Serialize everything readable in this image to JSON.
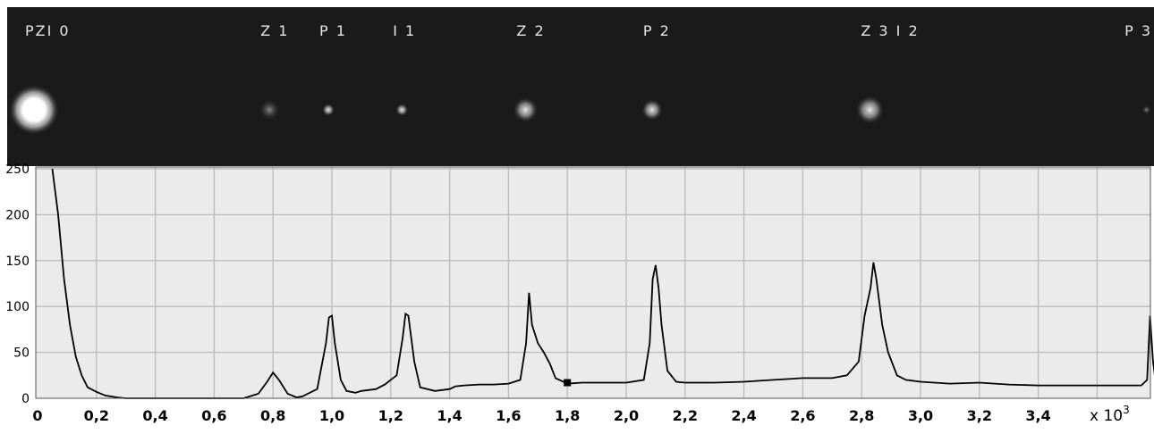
{
  "image_strip": {
    "labels": [
      "PZI 0",
      "Z 1",
      "P 1",
      "I 1",
      "Z 2",
      "P 2",
      "Z 3 I 2",
      "P 3"
    ],
    "label_x": [
      0.0,
      0.8,
      1.0,
      1.25,
      1.67,
      2.1,
      2.84,
      3.78
    ]
  },
  "chart_data": {
    "type": "line",
    "title": "",
    "xlabel": "",
    "ylabel": "",
    "x_multiplier_label": "x 10",
    "x_multiplier_exponent": "3",
    "xlim": [
      0,
      3.81
    ],
    "ylim": [
      0,
      250
    ],
    "x_ticks": [
      0,
      0.2,
      0.4,
      0.6,
      0.8,
      1.0,
      1.2,
      1.4,
      1.6,
      1.8,
      2.0,
      2.2,
      2.4,
      2.6,
      2.8,
      3.0,
      3.2,
      3.4
    ],
    "x_tick_labels": [
      "0",
      "0,2",
      "0,4",
      "0,6",
      "0,8",
      "1,0",
      "1,2",
      "1,4",
      "1,6",
      "1,8",
      "2,0",
      "2,2",
      "2,4",
      "2,6",
      "2,8",
      "3,0",
      "3,2",
      "3,4"
    ],
    "y_ticks": [
      0,
      50,
      100,
      150,
      200,
      250
    ],
    "y_tick_labels": [
      "0",
      "50",
      "100",
      "150",
      "200",
      "250"
    ],
    "grid": true,
    "colors": {
      "line": "#000000",
      "grid": "#bdbdbd",
      "background": "#ebebeb"
    },
    "series": [
      {
        "x": [
          0.05,
          0.07,
          0.09,
          0.11,
          0.13,
          0.15,
          0.17,
          0.2,
          0.23,
          0.27,
          0.3,
          0.4,
          0.5,
          0.6,
          0.7,
          0.75,
          0.78,
          0.8,
          0.82,
          0.85,
          0.88,
          0.9,
          0.95,
          0.98,
          0.99,
          1.0,
          1.01,
          1.03,
          1.05,
          1.08,
          1.1,
          1.15,
          1.18,
          1.22,
          1.24,
          1.25,
          1.26,
          1.28,
          1.3,
          1.35,
          1.4,
          1.42,
          1.45,
          1.5,
          1.55,
          1.6,
          1.64,
          1.66,
          1.67,
          1.68,
          1.7,
          1.72,
          1.74,
          1.76,
          1.8,
          1.85,
          1.9,
          2.0,
          2.06,
          2.08,
          2.09,
          2.1,
          2.11,
          2.12,
          2.14,
          2.17,
          2.2,
          2.3,
          2.4,
          2.5,
          2.6,
          2.7,
          2.75,
          2.79,
          2.81,
          2.83,
          2.84,
          2.85,
          2.87,
          2.89,
          2.92,
          2.95,
          3.0,
          3.1,
          3.2,
          3.3,
          3.4,
          3.5,
          3.6,
          3.7,
          3.75,
          3.77,
          3.78,
          3.79,
          3.8
        ],
        "y": [
          250,
          200,
          130,
          80,
          45,
          25,
          12,
          7,
          3,
          1,
          0,
          0,
          0,
          0,
          0,
          5,
          18,
          28,
          20,
          5,
          1,
          2,
          10,
          60,
          88,
          90,
          60,
          20,
          8,
          6,
          8,
          10,
          15,
          25,
          65,
          92,
          90,
          40,
          12,
          8,
          10,
          13,
          14,
          15,
          15,
          16,
          20,
          60,
          115,
          80,
          60,
          50,
          38,
          22,
          16,
          17,
          17,
          17,
          20,
          60,
          130,
          145,
          120,
          80,
          30,
          18,
          17,
          17,
          18,
          20,
          22,
          22,
          25,
          40,
          90,
          120,
          148,
          130,
          80,
          50,
          25,
          20,
          18,
          16,
          17,
          15,
          14,
          14,
          14,
          14,
          14,
          20,
          90,
          40,
          15
        ]
      }
    ]
  }
}
